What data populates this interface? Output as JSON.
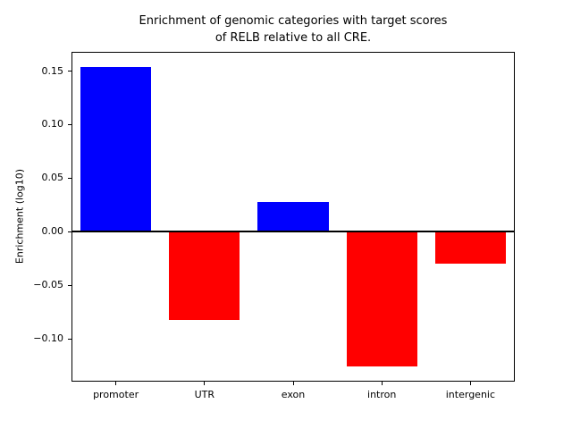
{
  "chart_data": {
    "type": "bar",
    "title_lines": [
      "Enrichment of genomic categories with target scores",
      "of RELB relative to all CRE."
    ],
    "categories": [
      "promoter",
      "UTR",
      "exon",
      "intron",
      "intergenic"
    ],
    "values": [
      0.154,
      -0.082,
      0.028,
      -0.126,
      -0.03
    ],
    "bar_colors": [
      "#0000ff",
      "#ff0000",
      "#0000ff",
      "#ff0000",
      "#ff0000"
    ],
    "xlabel": "",
    "ylabel": "Enrichment (log10)",
    "ylim": [
      -0.14,
      0.168
    ],
    "yticks": [
      0.15,
      0.1,
      0.05,
      0.0,
      -0.05,
      -0.1
    ],
    "ytick_labels": [
      "0.15",
      "0.10",
      "0.05",
      "0.00",
      "−0.05",
      "−0.10"
    ],
    "zero_line_value": 0,
    "grid": false,
    "legend_position": "none",
    "background_color": "#ffffff",
    "axis_color": "#000000"
  }
}
